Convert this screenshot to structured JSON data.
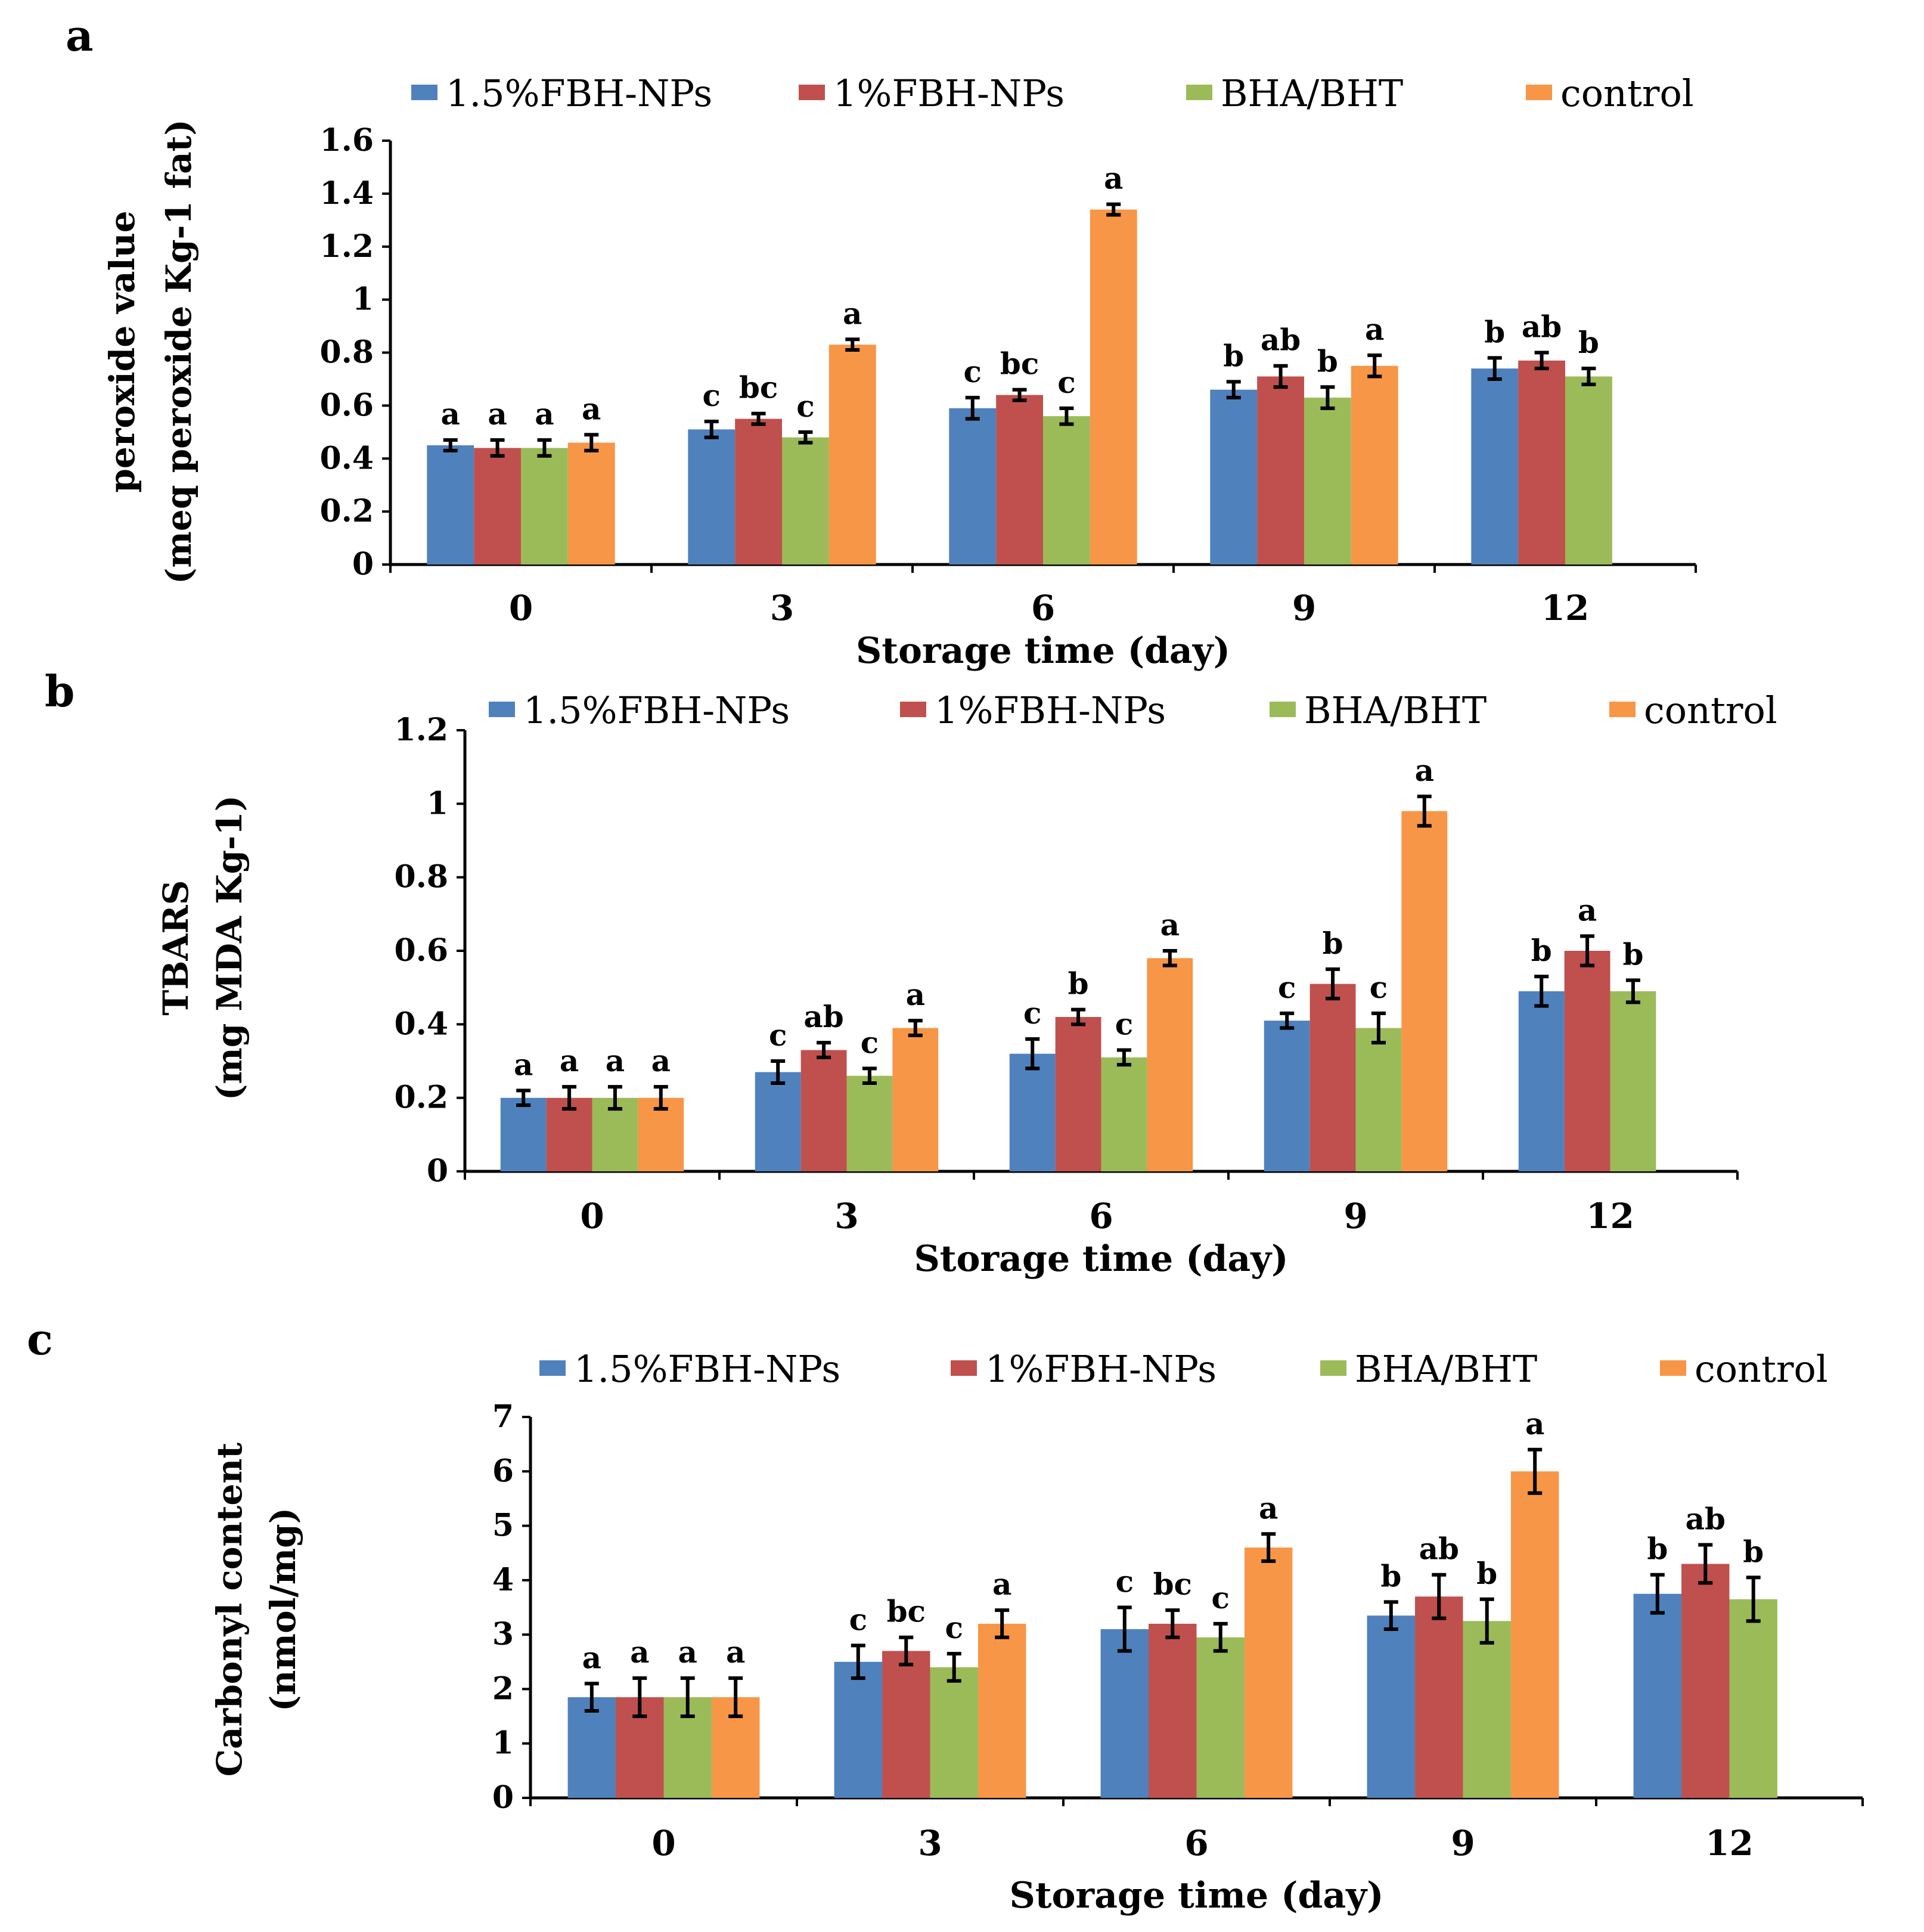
{
  "chart_data": [
    {
      "panel": "a",
      "type": "bar",
      "categories": [
        "0",
        "3",
        "6",
        "9",
        "12"
      ],
      "xlabel": "Storage time  (day)",
      "ylabel_lines": [
        "peroxide value",
        "(meq peroxide Kg-1 fat)"
      ],
      "ylim": [
        0,
        1.6
      ],
      "yticks": [
        "0",
        "0.2",
        "0.4",
        "0.6",
        "0.8",
        "1",
        "1.2",
        "1.4",
        "1.6"
      ],
      "legend_position": "top",
      "series": [
        {
          "name": "1.5%FBH-NPs",
          "color": "#4F81BD",
          "values": [
            0.45,
            0.51,
            0.59,
            0.66,
            0.74
          ],
          "errors": [
            0.02,
            0.03,
            0.04,
            0.03,
            0.04
          ],
          "letters": [
            "a",
            "c",
            "c",
            "b",
            "b"
          ]
        },
        {
          "name": "1%FBH-NPs",
          "color": "#C0504D",
          "values": [
            0.44,
            0.55,
            0.64,
            0.71,
            0.77
          ],
          "errors": [
            0.03,
            0.02,
            0.02,
            0.04,
            0.03
          ],
          "letters": [
            "a",
            "bc",
            "bc",
            "ab",
            "ab"
          ]
        },
        {
          "name": "BHA/BHT",
          "color": "#9BBB59",
          "values": [
            0.44,
            0.48,
            0.56,
            0.63,
            0.71
          ],
          "errors": [
            0.03,
            0.02,
            0.03,
            0.04,
            0.03
          ],
          "letters": [
            "a",
            "c",
            "c",
            "b",
            "b"
          ]
        },
        {
          "name": "control",
          "color": "#F79646",
          "values": [
            0.46,
            0.83,
            1.34,
            0.75,
            null
          ],
          "errors": [
            0.03,
            0.02,
            0.02,
            0.04,
            null
          ],
          "letters": [
            "a",
            "a",
            "a",
            "a",
            ""
          ]
        }
      ]
    },
    {
      "panel": "b",
      "type": "bar",
      "categories": [
        "0",
        "3",
        "6",
        "9",
        "12"
      ],
      "xlabel": "Storage time  (day)",
      "ylabel_lines": [
        "TBARS",
        "(mg MDA Kg-1)"
      ],
      "ylim": [
        0,
        1.2
      ],
      "yticks": [
        "0",
        "0.2",
        "0.4",
        "0.6",
        "0.8",
        "1",
        "1.2"
      ],
      "legend_position": "top",
      "series": [
        {
          "name": "1.5%FBH-NPs",
          "color": "#4F81BD",
          "values": [
            0.2,
            0.27,
            0.32,
            0.41,
            0.49
          ],
          "errors": [
            0.02,
            0.03,
            0.04,
            0.02,
            0.04
          ],
          "letters": [
            "a",
            "c",
            "c",
            "c",
            "b"
          ]
        },
        {
          "name": "1%FBH-NPs",
          "color": "#C0504D",
          "values": [
            0.2,
            0.33,
            0.42,
            0.51,
            0.6
          ],
          "errors": [
            0.03,
            0.02,
            0.02,
            0.04,
            0.04
          ],
          "letters": [
            "a",
            "ab",
            "b",
            "b",
            "a"
          ]
        },
        {
          "name": "BHA/BHT",
          "color": "#9BBB59",
          "values": [
            0.2,
            0.26,
            0.31,
            0.39,
            0.49
          ],
          "errors": [
            0.03,
            0.02,
            0.02,
            0.04,
            0.03
          ],
          "letters": [
            "a",
            "c",
            "c",
            "c",
            "b"
          ]
        },
        {
          "name": "control",
          "color": "#F79646",
          "values": [
            0.2,
            0.39,
            0.58,
            0.98,
            null
          ],
          "errors": [
            0.03,
            0.02,
            0.02,
            0.04,
            null
          ],
          "letters": [
            "a",
            "a",
            "a",
            "a",
            ""
          ]
        }
      ]
    },
    {
      "panel": "c",
      "type": "bar",
      "categories": [
        "0",
        "3",
        "6",
        "9",
        "12"
      ],
      "xlabel": "Storage time  (day)",
      "ylabel_lines": [
        "Carbonyl content",
        "(nmol/mg)"
      ],
      "ylim": [
        0,
        7
      ],
      "yticks": [
        "0",
        "1",
        "2",
        "3",
        "4",
        "5",
        "6",
        "7"
      ],
      "legend_position": "top",
      "series": [
        {
          "name": "1.5%FBH-NPs",
          "color": "#4F81BD",
          "values": [
            1.85,
            2.5,
            3.1,
            3.35,
            3.75
          ],
          "errors": [
            0.25,
            0.3,
            0.4,
            0.25,
            0.35
          ],
          "letters": [
            "a",
            "c",
            "c",
            "b",
            "b"
          ]
        },
        {
          "name": "1%FBH-NPs",
          "color": "#C0504D",
          "values": [
            1.85,
            2.7,
            3.2,
            3.7,
            4.3
          ],
          "errors": [
            0.35,
            0.25,
            0.25,
            0.4,
            0.35
          ],
          "letters": [
            "a",
            "bc",
            "bc",
            "ab",
            "ab"
          ]
        },
        {
          "name": "BHA/BHT",
          "color": "#9BBB59",
          "values": [
            1.85,
            2.4,
            2.95,
            3.25,
            3.65
          ],
          "errors": [
            0.35,
            0.25,
            0.25,
            0.4,
            0.4
          ],
          "letters": [
            "a",
            "c",
            "c",
            "b",
            "b"
          ]
        },
        {
          "name": "control",
          "color": "#F79646",
          "values": [
            1.85,
            3.2,
            4.6,
            6.0,
            null
          ],
          "errors": [
            0.35,
            0.25,
            0.25,
            0.4,
            null
          ],
          "letters": [
            "a",
            "a",
            "a",
            "a",
            ""
          ]
        }
      ]
    }
  ]
}
